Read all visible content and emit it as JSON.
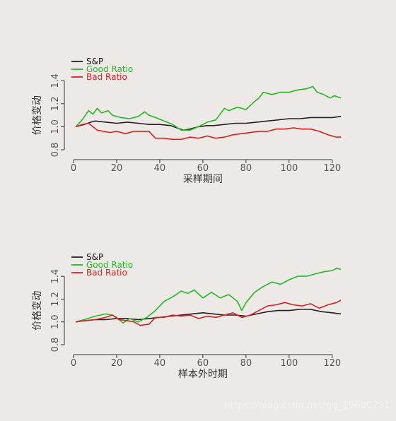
{
  "watermark": "https://blog.csdn.net/qq_19600291",
  "chart_data": [
    {
      "type": "line",
      "xlabel": "采样期间",
      "ylabel": "价格变动",
      "xlim": [
        0,
        124
      ],
      "ylim": [
        0.8,
        1.5
      ],
      "xticks": [
        0,
        20,
        40,
        60,
        80,
        100,
        120
      ],
      "yticks": [
        0.8,
        1.0,
        1.2,
        1.4
      ],
      "legend_position": "top-left",
      "grid": false,
      "series": [
        {
          "name": "S&P",
          "color": "#222222",
          "points": [
            [
              1,
              1.0
            ],
            [
              5,
              1.02
            ],
            [
              8,
              1.04
            ],
            [
              10,
              1.05
            ],
            [
              15,
              1.04
            ],
            [
              20,
              1.03
            ],
            [
              25,
              1.04
            ],
            [
              30,
              1.03
            ],
            [
              35,
              1.02
            ],
            [
              40,
              1.02
            ],
            [
              45,
              1.01
            ],
            [
              48,
              0.99
            ],
            [
              51,
              0.97
            ],
            [
              54,
              0.98
            ],
            [
              58,
              1.0
            ],
            [
              62,
              1.01
            ],
            [
              65,
              1.01
            ],
            [
              70,
              1.02
            ],
            [
              75,
              1.03
            ],
            [
              80,
              1.03
            ],
            [
              85,
              1.04
            ],
            [
              90,
              1.05
            ],
            [
              95,
              1.06
            ],
            [
              100,
              1.07
            ],
            [
              105,
              1.07
            ],
            [
              110,
              1.08
            ],
            [
              115,
              1.08
            ],
            [
              120,
              1.08
            ],
            [
              124,
              1.09
            ]
          ]
        },
        {
          "name": "Good Ratio",
          "color": "#22bb22",
          "points": [
            [
              1,
              1.0
            ],
            [
              4,
              1.06
            ],
            [
              7,
              1.14
            ],
            [
              9,
              1.11
            ],
            [
              11,
              1.16
            ],
            [
              13,
              1.12
            ],
            [
              16,
              1.14
            ],
            [
              18,
              1.1
            ],
            [
              22,
              1.08
            ],
            [
              26,
              1.07
            ],
            [
              30,
              1.09
            ],
            [
              33,
              1.13
            ],
            [
              35,
              1.1
            ],
            [
              38,
              1.08
            ],
            [
              42,
              1.05
            ],
            [
              46,
              1.02
            ],
            [
              50,
              0.97
            ],
            [
              54,
              0.97
            ],
            [
              58,
              1.0
            ],
            [
              62,
              1.04
            ],
            [
              66,
              1.06
            ],
            [
              70,
              1.16
            ],
            [
              72,
              1.14
            ],
            [
              76,
              1.17
            ],
            [
              80,
              1.15
            ],
            [
              84,
              1.22
            ],
            [
              86,
              1.25
            ],
            [
              88,
              1.3
            ],
            [
              92,
              1.28
            ],
            [
              96,
              1.3
            ],
            [
              100,
              1.3
            ],
            [
              104,
              1.32
            ],
            [
              108,
              1.33
            ],
            [
              111,
              1.35
            ],
            [
              113,
              1.3
            ],
            [
              116,
              1.28
            ],
            [
              119,
              1.25
            ],
            [
              121,
              1.27
            ],
            [
              124,
              1.25
            ]
          ]
        },
        {
          "name": "Bad Ratio",
          "color": "#dd2222",
          "points": [
            [
              1,
              1.0
            ],
            [
              4,
              1.02
            ],
            [
              7,
              1.03
            ],
            [
              9,
              1.0
            ],
            [
              11,
              0.97
            ],
            [
              14,
              0.96
            ],
            [
              17,
              0.95
            ],
            [
              20,
              0.96
            ],
            [
              24,
              0.94
            ],
            [
              28,
              0.96
            ],
            [
              32,
              0.96
            ],
            [
              35,
              0.96
            ],
            [
              38,
              0.9
            ],
            [
              42,
              0.9
            ],
            [
              46,
              0.89
            ],
            [
              50,
              0.89
            ],
            [
              54,
              0.91
            ],
            [
              58,
              0.9
            ],
            [
              62,
              0.92
            ],
            [
              66,
              0.9
            ],
            [
              70,
              0.91
            ],
            [
              74,
              0.93
            ],
            [
              78,
              0.94
            ],
            [
              82,
              0.95
            ],
            [
              86,
              0.96
            ],
            [
              90,
              0.96
            ],
            [
              94,
              0.98
            ],
            [
              98,
              0.98
            ],
            [
              102,
              0.99
            ],
            [
              106,
              0.98
            ],
            [
              110,
              0.98
            ],
            [
              114,
              0.96
            ],
            [
              118,
              0.93
            ],
            [
              122,
              0.91
            ],
            [
              124,
              0.91
            ]
          ]
        }
      ]
    },
    {
      "type": "line",
      "xlabel": "样本外时期",
      "ylabel": "价格变动",
      "xlim": [
        0,
        124
      ],
      "ylim": [
        0.8,
        1.5
      ],
      "xticks": [
        0,
        20,
        40,
        60,
        80,
        100,
        120
      ],
      "yticks": [
        0.8,
        1.0,
        1.2,
        1.4
      ],
      "legend_position": "top-left",
      "grid": false,
      "series": [
        {
          "name": "S&P",
          "color": "#222222",
          "points": [
            [
              1,
              1.0
            ],
            [
              5,
              1.01
            ],
            [
              10,
              1.02
            ],
            [
              15,
              1.02
            ],
            [
              20,
              1.03
            ],
            [
              25,
              1.03
            ],
            [
              30,
              1.02
            ],
            [
              35,
              1.03
            ],
            [
              40,
              1.04
            ],
            [
              45,
              1.05
            ],
            [
              50,
              1.06
            ],
            [
              55,
              1.07
            ],
            [
              60,
              1.08
            ],
            [
              65,
              1.07
            ],
            [
              70,
              1.06
            ],
            [
              75,
              1.06
            ],
            [
              80,
              1.05
            ],
            [
              85,
              1.07
            ],
            [
              90,
              1.09
            ],
            [
              95,
              1.1
            ],
            [
              100,
              1.1
            ],
            [
              105,
              1.11
            ],
            [
              110,
              1.11
            ],
            [
              115,
              1.09
            ],
            [
              120,
              1.08
            ],
            [
              124,
              1.07
            ]
          ]
        },
        {
          "name": "Good Ratio",
          "color": "#22bb22",
          "points": [
            [
              1,
              1.0
            ],
            [
              5,
              1.02
            ],
            [
              10,
              1.05
            ],
            [
              15,
              1.07
            ],
            [
              18,
              1.06
            ],
            [
              20,
              1.04
            ],
            [
              23,
              0.99
            ],
            [
              26,
              1.03
            ],
            [
              30,
              1.0
            ],
            [
              34,
              1.04
            ],
            [
              38,
              1.1
            ],
            [
              42,
              1.18
            ],
            [
              46,
              1.22
            ],
            [
              50,
              1.27
            ],
            [
              53,
              1.25
            ],
            [
              56,
              1.28
            ],
            [
              60,
              1.21
            ],
            [
              64,
              1.26
            ],
            [
              68,
              1.21
            ],
            [
              72,
              1.24
            ],
            [
              76,
              1.18
            ],
            [
              78,
              1.1
            ],
            [
              80,
              1.17
            ],
            [
              84,
              1.26
            ],
            [
              88,
              1.31
            ],
            [
              92,
              1.35
            ],
            [
              96,
              1.33
            ],
            [
              100,
              1.37
            ],
            [
              104,
              1.4
            ],
            [
              108,
              1.4
            ],
            [
              112,
              1.42
            ],
            [
              116,
              1.44
            ],
            [
              120,
              1.45
            ],
            [
              122,
              1.47
            ],
            [
              124,
              1.46
            ]
          ]
        },
        {
          "name": "Bad Ratio",
          "color": "#dd2222",
          "points": [
            [
              1,
              1.0
            ],
            [
              5,
              1.01
            ],
            [
              10,
              1.02
            ],
            [
              15,
              1.04
            ],
            [
              18,
              1.06
            ],
            [
              21,
              1.02
            ],
            [
              25,
              1.01
            ],
            [
              28,
              1.0
            ],
            [
              31,
              0.97
            ],
            [
              35,
              0.98
            ],
            [
              38,
              1.04
            ],
            [
              42,
              1.04
            ],
            [
              46,
              1.06
            ],
            [
              50,
              1.05
            ],
            [
              54,
              1.06
            ],
            [
              58,
              1.03
            ],
            [
              62,
              1.05
            ],
            [
              66,
              1.04
            ],
            [
              70,
              1.06
            ],
            [
              74,
              1.08
            ],
            [
              78,
              1.04
            ],
            [
              82,
              1.06
            ],
            [
              86,
              1.1
            ],
            [
              90,
              1.14
            ],
            [
              94,
              1.15
            ],
            [
              98,
              1.17
            ],
            [
              102,
              1.15
            ],
            [
              106,
              1.14
            ],
            [
              110,
              1.16
            ],
            [
              114,
              1.12
            ],
            [
              118,
              1.15
            ],
            [
              122,
              1.17
            ],
            [
              124,
              1.19
            ]
          ]
        }
      ]
    }
  ]
}
